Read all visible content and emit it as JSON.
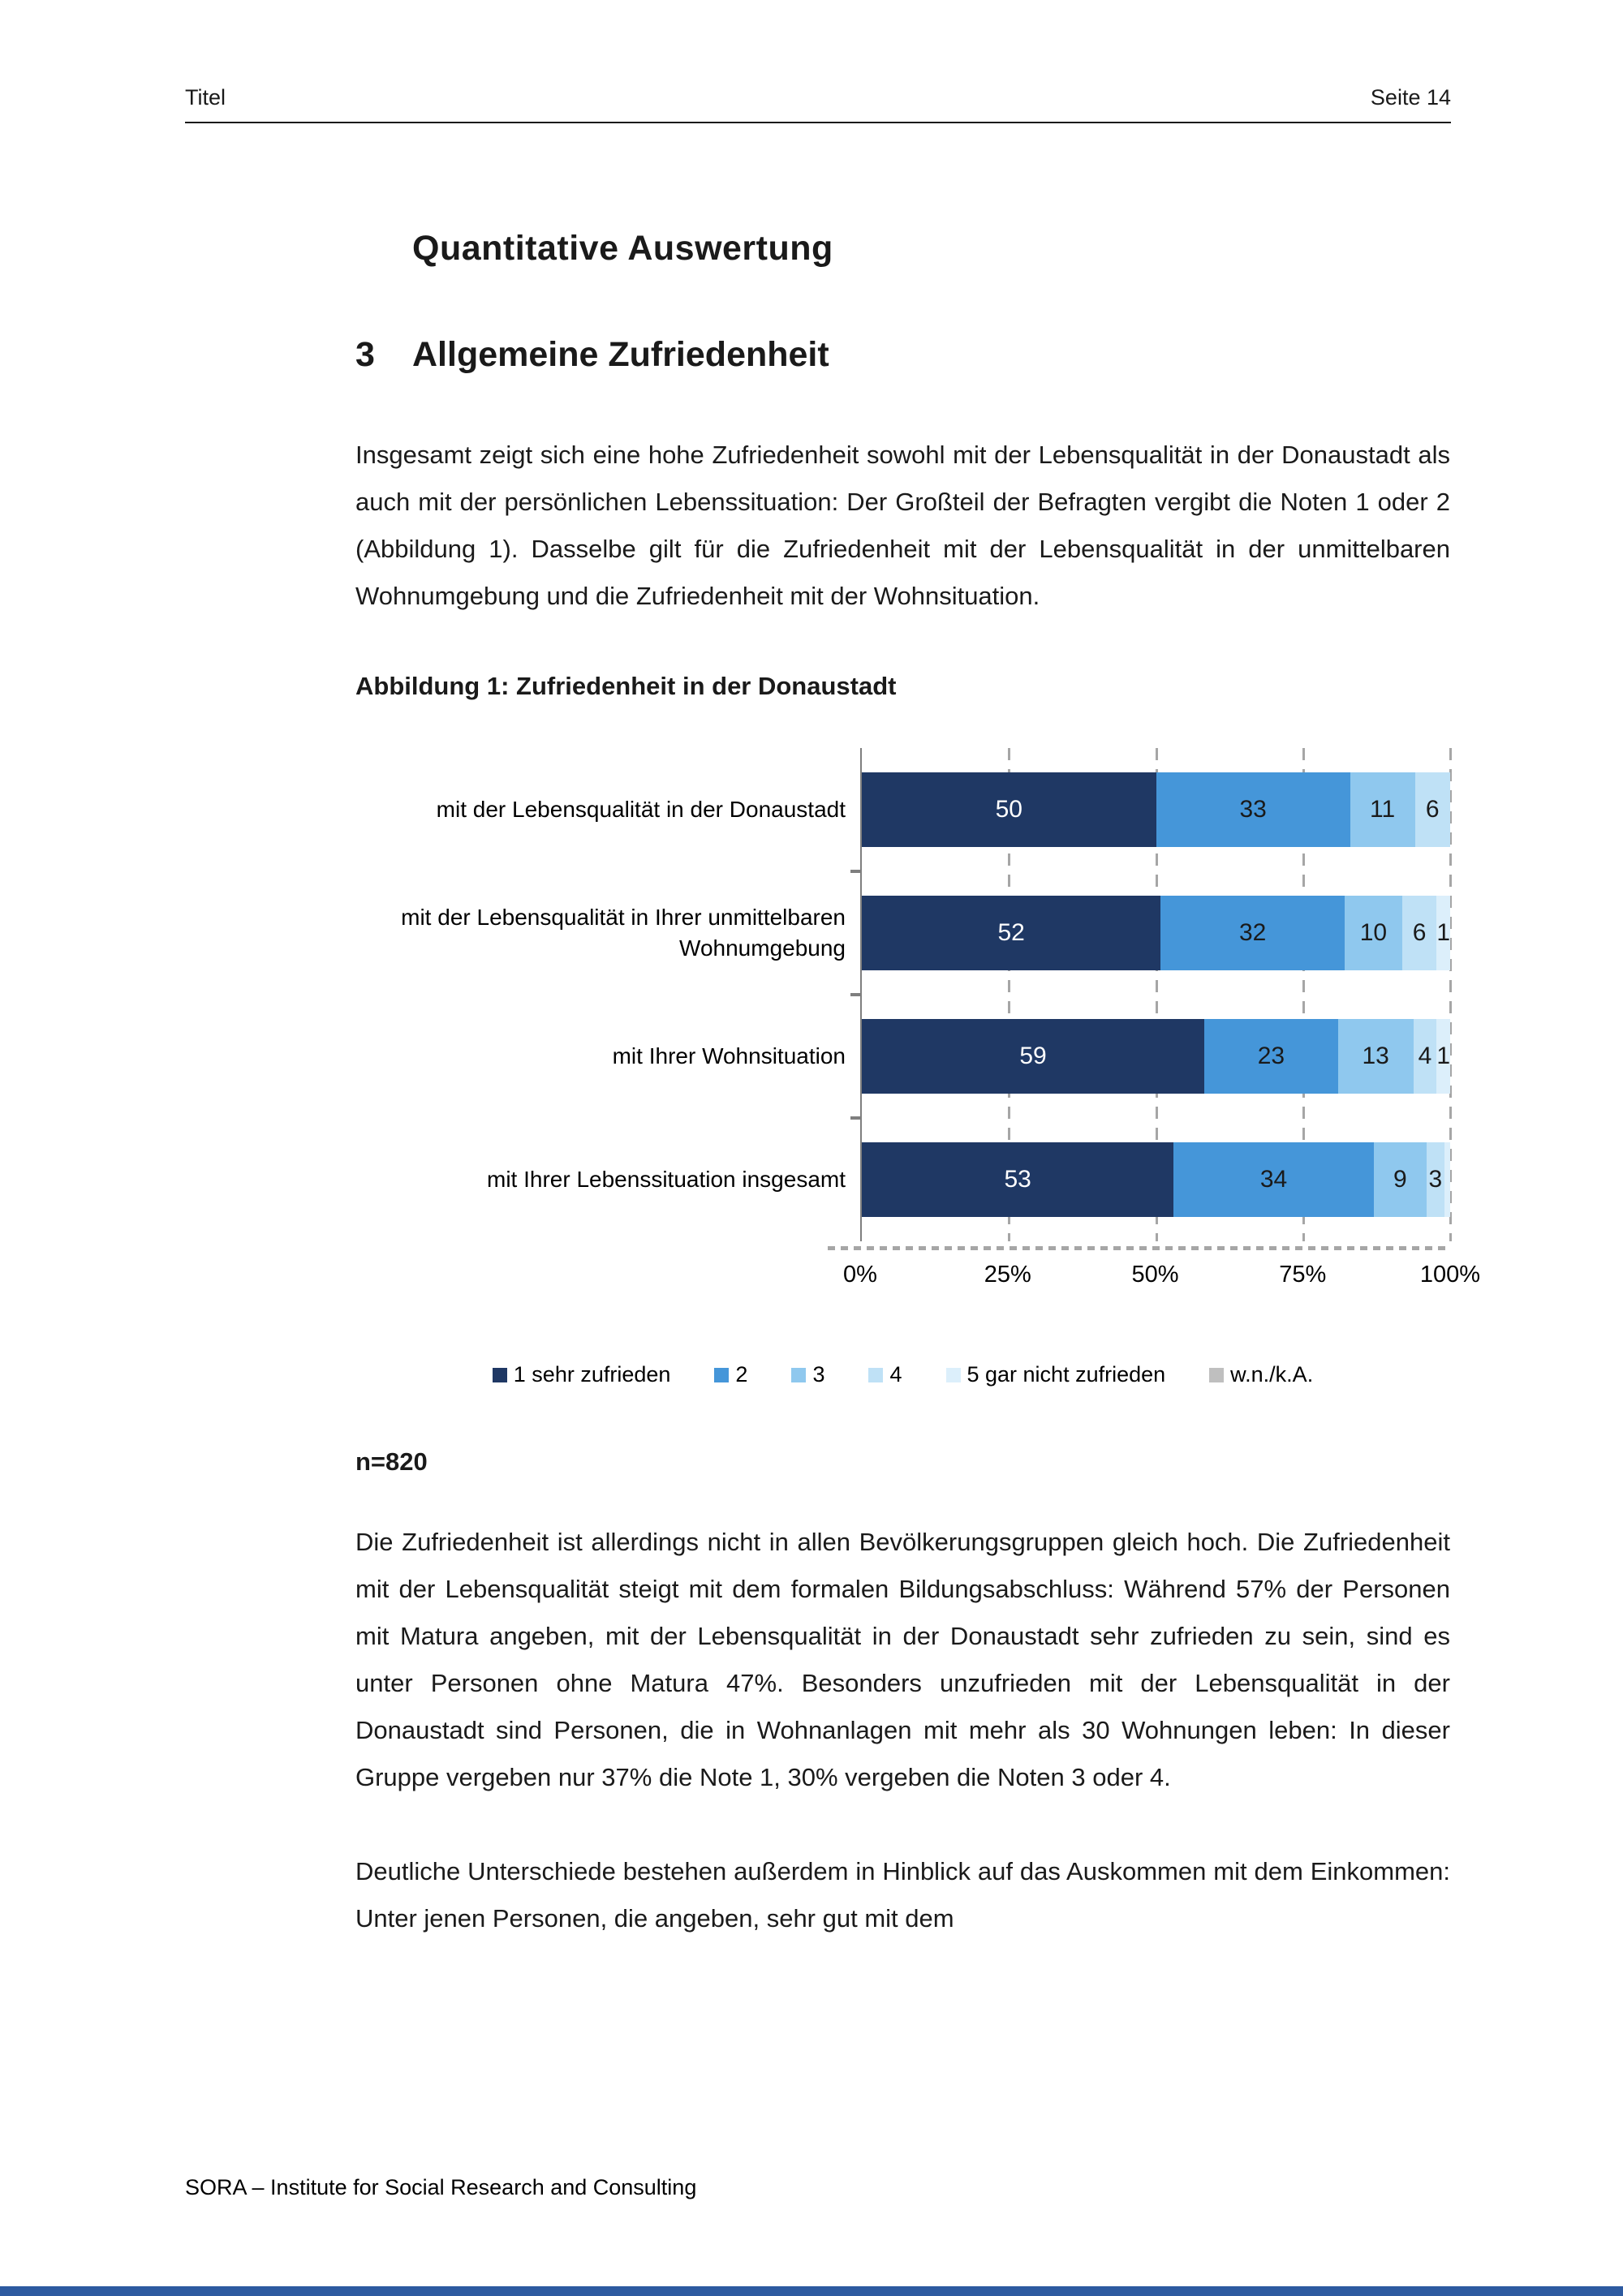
{
  "page": {
    "header": {
      "left": "Titel",
      "right": "Seite 14"
    },
    "title": "Quantitative Auswertung",
    "section": {
      "number": "3",
      "heading": "Allgemeine Zufriedenheit"
    },
    "paragraphs": {
      "p1": "Insgesamt zeigt sich eine hohe Zufriedenheit sowohl mit der Lebensqualität in der Donaustadt als auch mit der persönlichen Lebenssituation: Der Großteil der Befragten vergibt die Noten 1 oder 2 (Abbildung 1). Dasselbe gilt für die Zufriedenheit mit der Lebensqualität in der unmittelbaren Wohnumgebung und die Zufriedenheit mit der Wohnsituation.",
      "p2": "Die Zufriedenheit ist allerdings nicht in allen Bevölkerungsgruppen gleich hoch. Die Zufriedenheit mit der Lebensqualität steigt mit dem formalen Bildungsabschluss: Während 57% der Personen mit Matura angeben, mit der Lebensqualität in der Donaustadt sehr zufrieden zu sein, sind es unter Personen ohne Matura 47%. Besonders unzufrieden mit der Lebensqualität in der Donaustadt sind Personen, die in Wohnanlagen mit mehr als 30 Wohnungen leben: In dieser Gruppe vergeben nur 37% die Note 1, 30% vergeben die Noten 3 oder 4.",
      "p3": "Deutliche Unterschiede bestehen außerdem in Hinblick auf das Auskommen mit dem Einkommen: Unter jenen Personen, die angeben, sehr gut mit dem"
    },
    "figure_caption": "Abbildung 1: Zufriedenheit in der Donaustadt",
    "sample_note": "n=820",
    "footer": "SORA – Institute for Social Research and Consulting"
  },
  "chart_data": {
    "type": "bar",
    "orientation": "horizontal",
    "stacked": true,
    "title": "Abbildung 1: Zufriedenheit in der Donaustadt",
    "xlim": [
      0,
      100
    ],
    "x_ticks": [
      "0%",
      "25%",
      "50%",
      "75%",
      "100%"
    ],
    "grid": "vertical-dashed",
    "legend_position": "bottom",
    "categories": [
      "mit der Lebensqualität in der Donaustadt",
      "mit der Lebensqualität in Ihrer unmittelbaren Wohnumgebung",
      "mit Ihrer Wohnsituation",
      "mit Ihrer Lebenssituation insgesamt"
    ],
    "series": [
      {
        "name": "1 sehr zufrieden",
        "color": "#1f3864",
        "text_color": "#ffffff",
        "values": [
          50,
          52,
          59,
          53
        ],
        "labels": [
          "50",
          "52",
          "59",
          "53"
        ]
      },
      {
        "name": "2",
        "color": "#4596d9",
        "text_color": "#1a1a1a",
        "values": [
          33,
          32,
          23,
          34
        ],
        "labels": [
          "33",
          "32",
          "23",
          "34"
        ]
      },
      {
        "name": "3",
        "color": "#8fc8ee",
        "text_color": "#1a1a1a",
        "values": [
          11,
          10,
          13,
          9
        ],
        "labels": [
          "11",
          "10",
          "13",
          "9"
        ]
      },
      {
        "name": "4",
        "color": "#bfe1f6",
        "text_color": "#1a1a1a",
        "values": [
          6,
          6,
          4,
          3
        ],
        "labels": [
          "6",
          "6",
          "4",
          "3"
        ]
      },
      {
        "name": "5 gar nicht zufrieden",
        "color": "#dceffb",
        "text_color": "#1a1a1a",
        "values": [
          0,
          1,
          1,
          1
        ],
        "labels": [
          "",
          "1",
          "1",
          ""
        ]
      },
      {
        "name": "w.n./k.A.",
        "color": "#bfbfbf",
        "text_color": "#1a1a1a",
        "values": [
          0,
          0,
          0,
          0
        ],
        "labels": [
          "",
          "",
          "",
          ""
        ]
      }
    ],
    "n_label": "n=820"
  }
}
